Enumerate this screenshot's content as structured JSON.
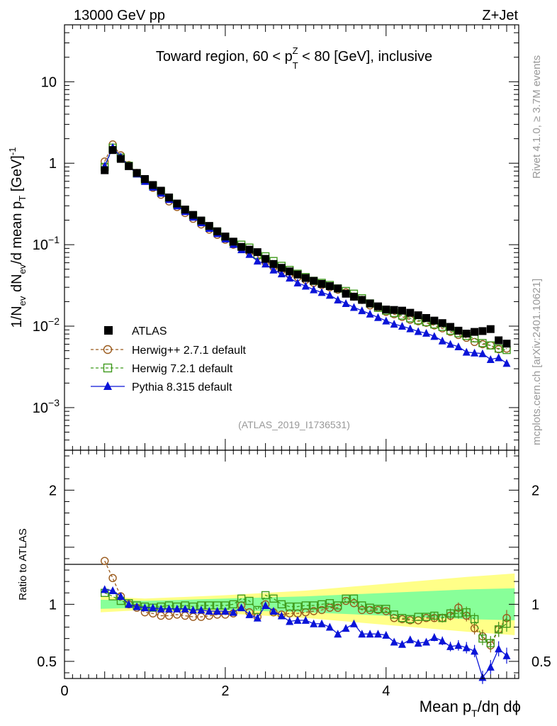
{
  "header": {
    "left": "13000 GeV pp",
    "right": "Z+Jet"
  },
  "side": {
    "rivet": "Rivet 4.1.0, ≥ 3.7M events",
    "mcplots": "mcplots.cern.ch [arXiv:2401.10621]"
  },
  "colors": {
    "atlas": "#000000",
    "herwigpp": "#9a5a1c",
    "herwig7": "#3f9a1c",
    "pythia": "#0a14d8",
    "band_yellow": "#ffff88",
    "band_green": "#88ff99"
  },
  "chart_data": [
    {
      "type": "scatter",
      "name": "main",
      "title": "Toward region, 60 < p_T^Z < 80 [GeV], inclusive",
      "title_parts": {
        "pre": "Toward region, 60 < p",
        "sub": "T",
        "sup": "Z",
        "post": " < 80 [GeV], inclusive"
      },
      "ylabel": "1/N_ev dN_ev/d mean p_T [GeV]^-1",
      "ylabel_parts": {
        "a": "1/N",
        "a_sub": "ev",
        "b": " dN",
        "b_sub": "ev",
        "c": "/d mean p",
        "c_sub": "T",
        "d": " [GeV]",
        "d_sup": "-1"
      },
      "yscale": "log",
      "xlim": [
        0,
        5.65
      ],
      "ylim": [
        0.0003,
        50
      ],
      "ytick_labels": [
        {
          "value": 10,
          "base": "10",
          "exp": ""
        },
        {
          "value": 1,
          "base": "1",
          "exp": ""
        },
        {
          "value": 0.1,
          "base": "10",
          "exp": "−1"
        },
        {
          "value": 0.01,
          "base": "10",
          "exp": "−2"
        },
        {
          "value": 0.001,
          "base": "10",
          "exp": "−3"
        }
      ],
      "analysis_label": "(ATLAS_2019_I1736531)",
      "legend": {
        "placement": "middle-left",
        "entries": [
          {
            "key": "atlas",
            "label": "ATLAS"
          },
          {
            "key": "herwigpp",
            "label": "Herwig++ 2.7.1 default"
          },
          {
            "key": "herwig7",
            "label": "Herwig 7.2.1 default"
          },
          {
            "key": "pythia",
            "label": "Pythia 8.315 default"
          }
        ]
      },
      "x": [
        0.5,
        0.6,
        0.7,
        0.8,
        0.9,
        1.0,
        1.1,
        1.2,
        1.3,
        1.4,
        1.5,
        1.6,
        1.7,
        1.8,
        1.9,
        2.0,
        2.1,
        2.2,
        2.3,
        2.4,
        2.5,
        2.6,
        2.7,
        2.8,
        2.9,
        3.0,
        3.1,
        3.2,
        3.3,
        3.4,
        3.5,
        3.6,
        3.7,
        3.8,
        3.9,
        4.0,
        4.1,
        4.2,
        4.3,
        4.4,
        4.5,
        4.6,
        4.7,
        4.8,
        4.9,
        5.0,
        5.1,
        5.2,
        5.3,
        5.4,
        5.5
      ],
      "series": [
        {
          "key": "atlas",
          "name": "ATLAS",
          "values": [
            0.82,
            1.45,
            1.13,
            0.92,
            0.76,
            0.64,
            0.54,
            0.46,
            0.38,
            0.32,
            0.27,
            0.232,
            0.198,
            0.17,
            0.146,
            0.126,
            0.109,
            0.094,
            0.087,
            0.081,
            0.067,
            0.058,
            0.052,
            0.047,
            0.043,
            0.039,
            0.036,
            0.033,
            0.031,
            0.029,
            0.025,
            0.023,
            0.021,
            0.019,
            0.0175,
            0.016,
            0.0158,
            0.0155,
            0.0146,
            0.0136,
            0.0126,
            0.0117,
            0.0109,
            0.0098,
            0.0088,
            0.0081,
            0.0085,
            0.0087,
            0.0092,
            0.0067,
            0.0061
          ]
        },
        {
          "key": "herwigpp",
          "name": "Herwig++ 2.7.1 default",
          "values": [
            1.05,
            1.7,
            1.25,
            0.95,
            0.76,
            0.61,
            0.5,
            0.41,
            0.34,
            0.29,
            0.245,
            0.208,
            0.177,
            0.153,
            0.132,
            0.115,
            0.1,
            0.093,
            0.081,
            0.072,
            0.061,
            0.053,
            0.048,
            0.043,
            0.04,
            0.037,
            0.034,
            0.032,
            0.03,
            0.028,
            0.026,
            0.023,
            0.021,
            0.018,
            0.017,
            0.015,
            0.014,
            0.013,
            0.012,
            0.0115,
            0.011,
            0.0102,
            0.0094,
            0.0085,
            0.0078,
            0.0072,
            0.0064,
            0.006,
            0.0058,
            0.0052,
            0.0053
          ]
        },
        {
          "key": "herwig7",
          "name": "Herwig 7.2.1 default",
          "values": [
            0.9,
            1.55,
            1.17,
            0.93,
            0.75,
            0.62,
            0.53,
            0.45,
            0.375,
            0.315,
            0.268,
            0.228,
            0.195,
            0.168,
            0.145,
            0.125,
            0.108,
            0.1,
            0.092,
            0.075,
            0.072,
            0.063,
            0.055,
            0.049,
            0.044,
            0.04,
            0.036,
            0.034,
            0.032,
            0.029,
            0.027,
            0.025,
            0.022,
            0.019,
            0.0168,
            0.0155,
            0.0145,
            0.0135,
            0.0125,
            0.0118,
            0.0112,
            0.0105,
            0.0098,
            0.0088,
            0.0082,
            0.0076,
            0.0071,
            0.0062,
            0.0058,
            0.0053,
            0.0051
          ]
        },
        {
          "key": "pythia",
          "name": "Pythia 8.315 default",
          "values": [
            0.93,
            1.57,
            1.2,
            0.92,
            0.74,
            0.6,
            0.51,
            0.43,
            0.36,
            0.3,
            0.256,
            0.218,
            0.186,
            0.159,
            0.137,
            0.118,
            0.101,
            0.087,
            0.076,
            0.063,
            0.058,
            0.049,
            0.044,
            0.039,
            0.034,
            0.031,
            0.028,
            0.026,
            0.024,
            0.021,
            0.019,
            0.017,
            0.0155,
            0.0141,
            0.0128,
            0.0116,
            0.0106,
            0.01,
            0.0093,
            0.0086,
            0.0082,
            0.0075,
            0.0066,
            0.006,
            0.0056,
            0.0048,
            0.0047,
            0.0046,
            0.0039,
            0.0041,
            0.0035
          ]
        }
      ]
    },
    {
      "type": "line",
      "name": "ratio",
      "ylabel": "Ratio to ATLAS",
      "xlabel": "Mean p_T/dη dϕ",
      "xlabel_parts": {
        "a": "Mean p",
        "sub": "T",
        "b": "/dη dϕ"
      },
      "xlim": [
        0,
        5.65
      ],
      "ylim": [
        0.35,
        2.35
      ],
      "xticks": [
        0,
        2,
        4
      ],
      "yticks": [
        0.5,
        1,
        2
      ],
      "band_green": {
        "x": [
          0.45,
          1.0,
          2.0,
          3.0,
          4.0,
          5.0,
          5.6
        ],
        "lo": [
          0.96,
          0.97,
          0.95,
          0.93,
          0.9,
          0.87,
          0.86
        ],
        "hi": [
          1.04,
          1.03,
          1.05,
          1.07,
          1.1,
          1.13,
          1.14
        ]
      },
      "band_yellow": {
        "x": [
          0.45,
          1.0,
          2.0,
          3.0,
          4.0,
          5.0,
          5.6
        ],
        "lo": [
          0.93,
          0.95,
          0.92,
          0.88,
          0.82,
          0.76,
          0.73
        ],
        "hi": [
          1.07,
          1.05,
          1.08,
          1.12,
          1.18,
          1.24,
          1.27
        ]
      },
      "series": [
        {
          "key": "herwigpp",
          "name": "Herwig++ 2.7.1 default",
          "values": [
            1.38,
            1.23,
            1.07,
            1.0,
            0.97,
            0.93,
            0.92,
            0.9,
            0.9,
            0.91,
            0.9,
            0.89,
            0.89,
            0.9,
            0.91,
            0.91,
            0.92,
            0.99,
            0.93,
            0.89,
            1.0,
            0.93,
            0.91,
            0.92,
            0.92,
            0.93,
            0.94,
            0.95,
            0.97,
            0.97,
            1.03,
            1.01,
            0.95,
            0.95,
            0.95,
            0.94,
            0.88,
            0.87,
            0.86,
            0.86,
            0.88,
            0.88,
            0.88,
            0.9,
            0.97,
            0.9,
            0.79,
            0.72,
            0.64,
            0.78,
            0.88
          ]
        },
        {
          "key": "herwig7",
          "name": "Herwig 7.2.1 default",
          "values": [
            1.1,
            1.07,
            1.03,
            1.01,
            0.99,
            0.98,
            0.97,
            0.98,
            0.99,
            0.98,
            0.99,
            0.98,
            0.99,
            0.99,
            0.99,
            0.99,
            1.0,
            1.05,
            1.03,
            0.95,
            1.08,
            1.05,
            1.0,
            0.98,
            0.98,
            0.99,
            0.99,
            1.0,
            1.01,
            0.99,
            1.05,
            1.05,
            0.99,
            0.97,
            0.96,
            0.96,
            0.91,
            0.88,
            0.87,
            0.89,
            0.89,
            0.9,
            0.88,
            0.92,
            0.92,
            0.93,
            0.87,
            0.7,
            0.66,
            0.78,
            0.83
          ]
        },
        {
          "key": "pythia",
          "name": "Pythia 8.315 default",
          "values": [
            1.13,
            1.12,
            1.07,
            1.0,
            0.98,
            0.97,
            0.97,
            0.96,
            0.96,
            0.96,
            0.96,
            0.95,
            0.95,
            0.94,
            0.94,
            0.94,
            0.93,
            0.97,
            0.91,
            0.88,
            0.99,
            0.94,
            0.9,
            0.85,
            0.86,
            0.86,
            0.83,
            0.83,
            0.8,
            0.74,
            0.79,
            0.83,
            0.74,
            0.74,
            0.74,
            0.73,
            0.67,
            0.65,
            0.69,
            0.66,
            0.67,
            0.71,
            0.68,
            0.63,
            0.64,
            0.62,
            0.59,
            0.36,
            0.45,
            0.61,
            0.55
          ]
        }
      ]
    }
  ]
}
